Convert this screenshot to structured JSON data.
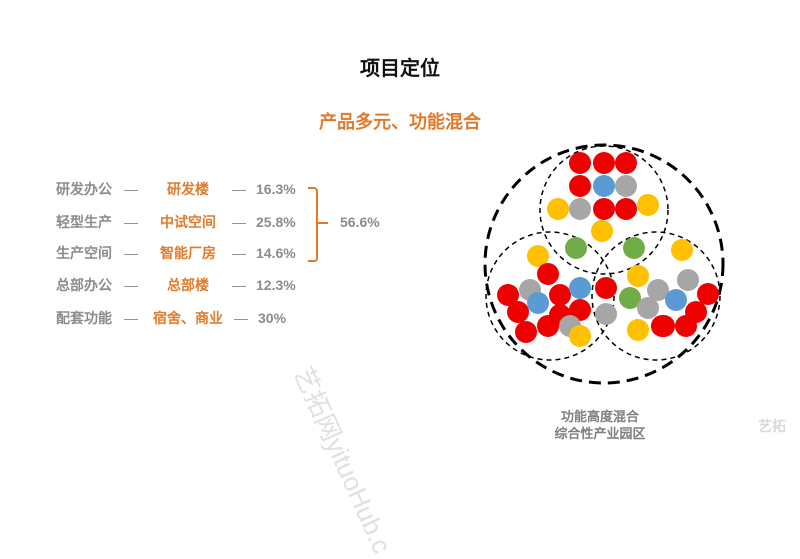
{
  "title": "项目定位",
  "subtitle": "产品多元、功能混合",
  "rows": [
    {
      "category": "研发办公",
      "product": "研发楼",
      "percent": "16.3%"
    },
    {
      "category": "轻型生产",
      "product": "中试空间",
      "percent": "25.8%"
    },
    {
      "category": "生产空间",
      "product": "智能厂房",
      "percent": "14.6%"
    },
    {
      "category": "总部办公",
      "product": "总部楼",
      "percent": "12.3%"
    },
    {
      "category": "配套功能",
      "product": "宿舍、商业",
      "percent": "30%"
    }
  ],
  "dash": "—",
  "group_total": "56.6%",
  "caption": {
    "line1": "功能高度混合",
    "line2": "综合性产业园区"
  },
  "watermark": "艺拓网yituoHub.c",
  "logo": "艺拓",
  "colors": {
    "accent": "#e07b2b",
    "gray_text": "#8c8c8c",
    "red": "#ee0000",
    "gray": "#a6a6a6",
    "blue": "#5b9bd5",
    "yellow": "#ffc000",
    "green": "#70ad47"
  }
}
